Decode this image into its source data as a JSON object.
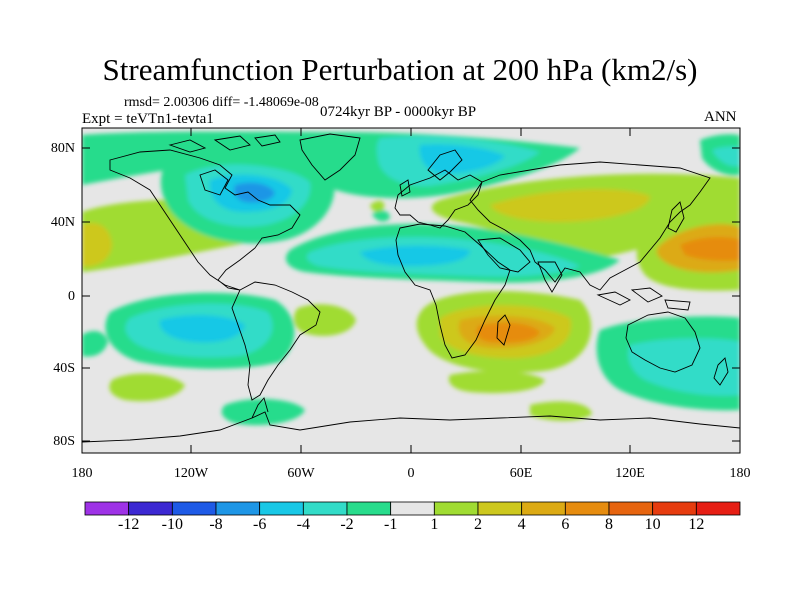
{
  "title": "Streamfunction Perturbation at 200 hPa (km2/s)",
  "stats": "rmsd= 2.00306 diff= -1.48069e-08",
  "experiment": "Expt = teVTn1-tevta1",
  "period": "0724kyr BP - 0000kyr BP",
  "season": "ANN",
  "lat_labels": [
    "80N",
    "40N",
    "0",
    "40S",
    "80S"
  ],
  "lon_labels": [
    "180",
    "120W",
    "60W",
    "0",
    "60E",
    "120E",
    "180"
  ],
  "colorbar": {
    "labels": [
      "-12",
      "-10",
      "-8",
      "-6",
      "-4",
      "-2",
      "-1",
      "1",
      "2",
      "4",
      "6",
      "8",
      "10",
      "12"
    ],
    "colors": [
      "#9e32e6",
      "#3c28d2",
      "#1e5ae6",
      "#1e96e6",
      "#19c8e6",
      "#32dcc8",
      "#28dc8c",
      "#e6e6e6",
      "#a0dc32",
      "#cdc81e",
      "#dcaa14",
      "#e68c0f",
      "#e6640f",
      "#e63c0f",
      "#e61e14"
    ]
  },
  "map_colors": {
    "ocean": "#e6e6e6",
    "coast": "#000000"
  }
}
